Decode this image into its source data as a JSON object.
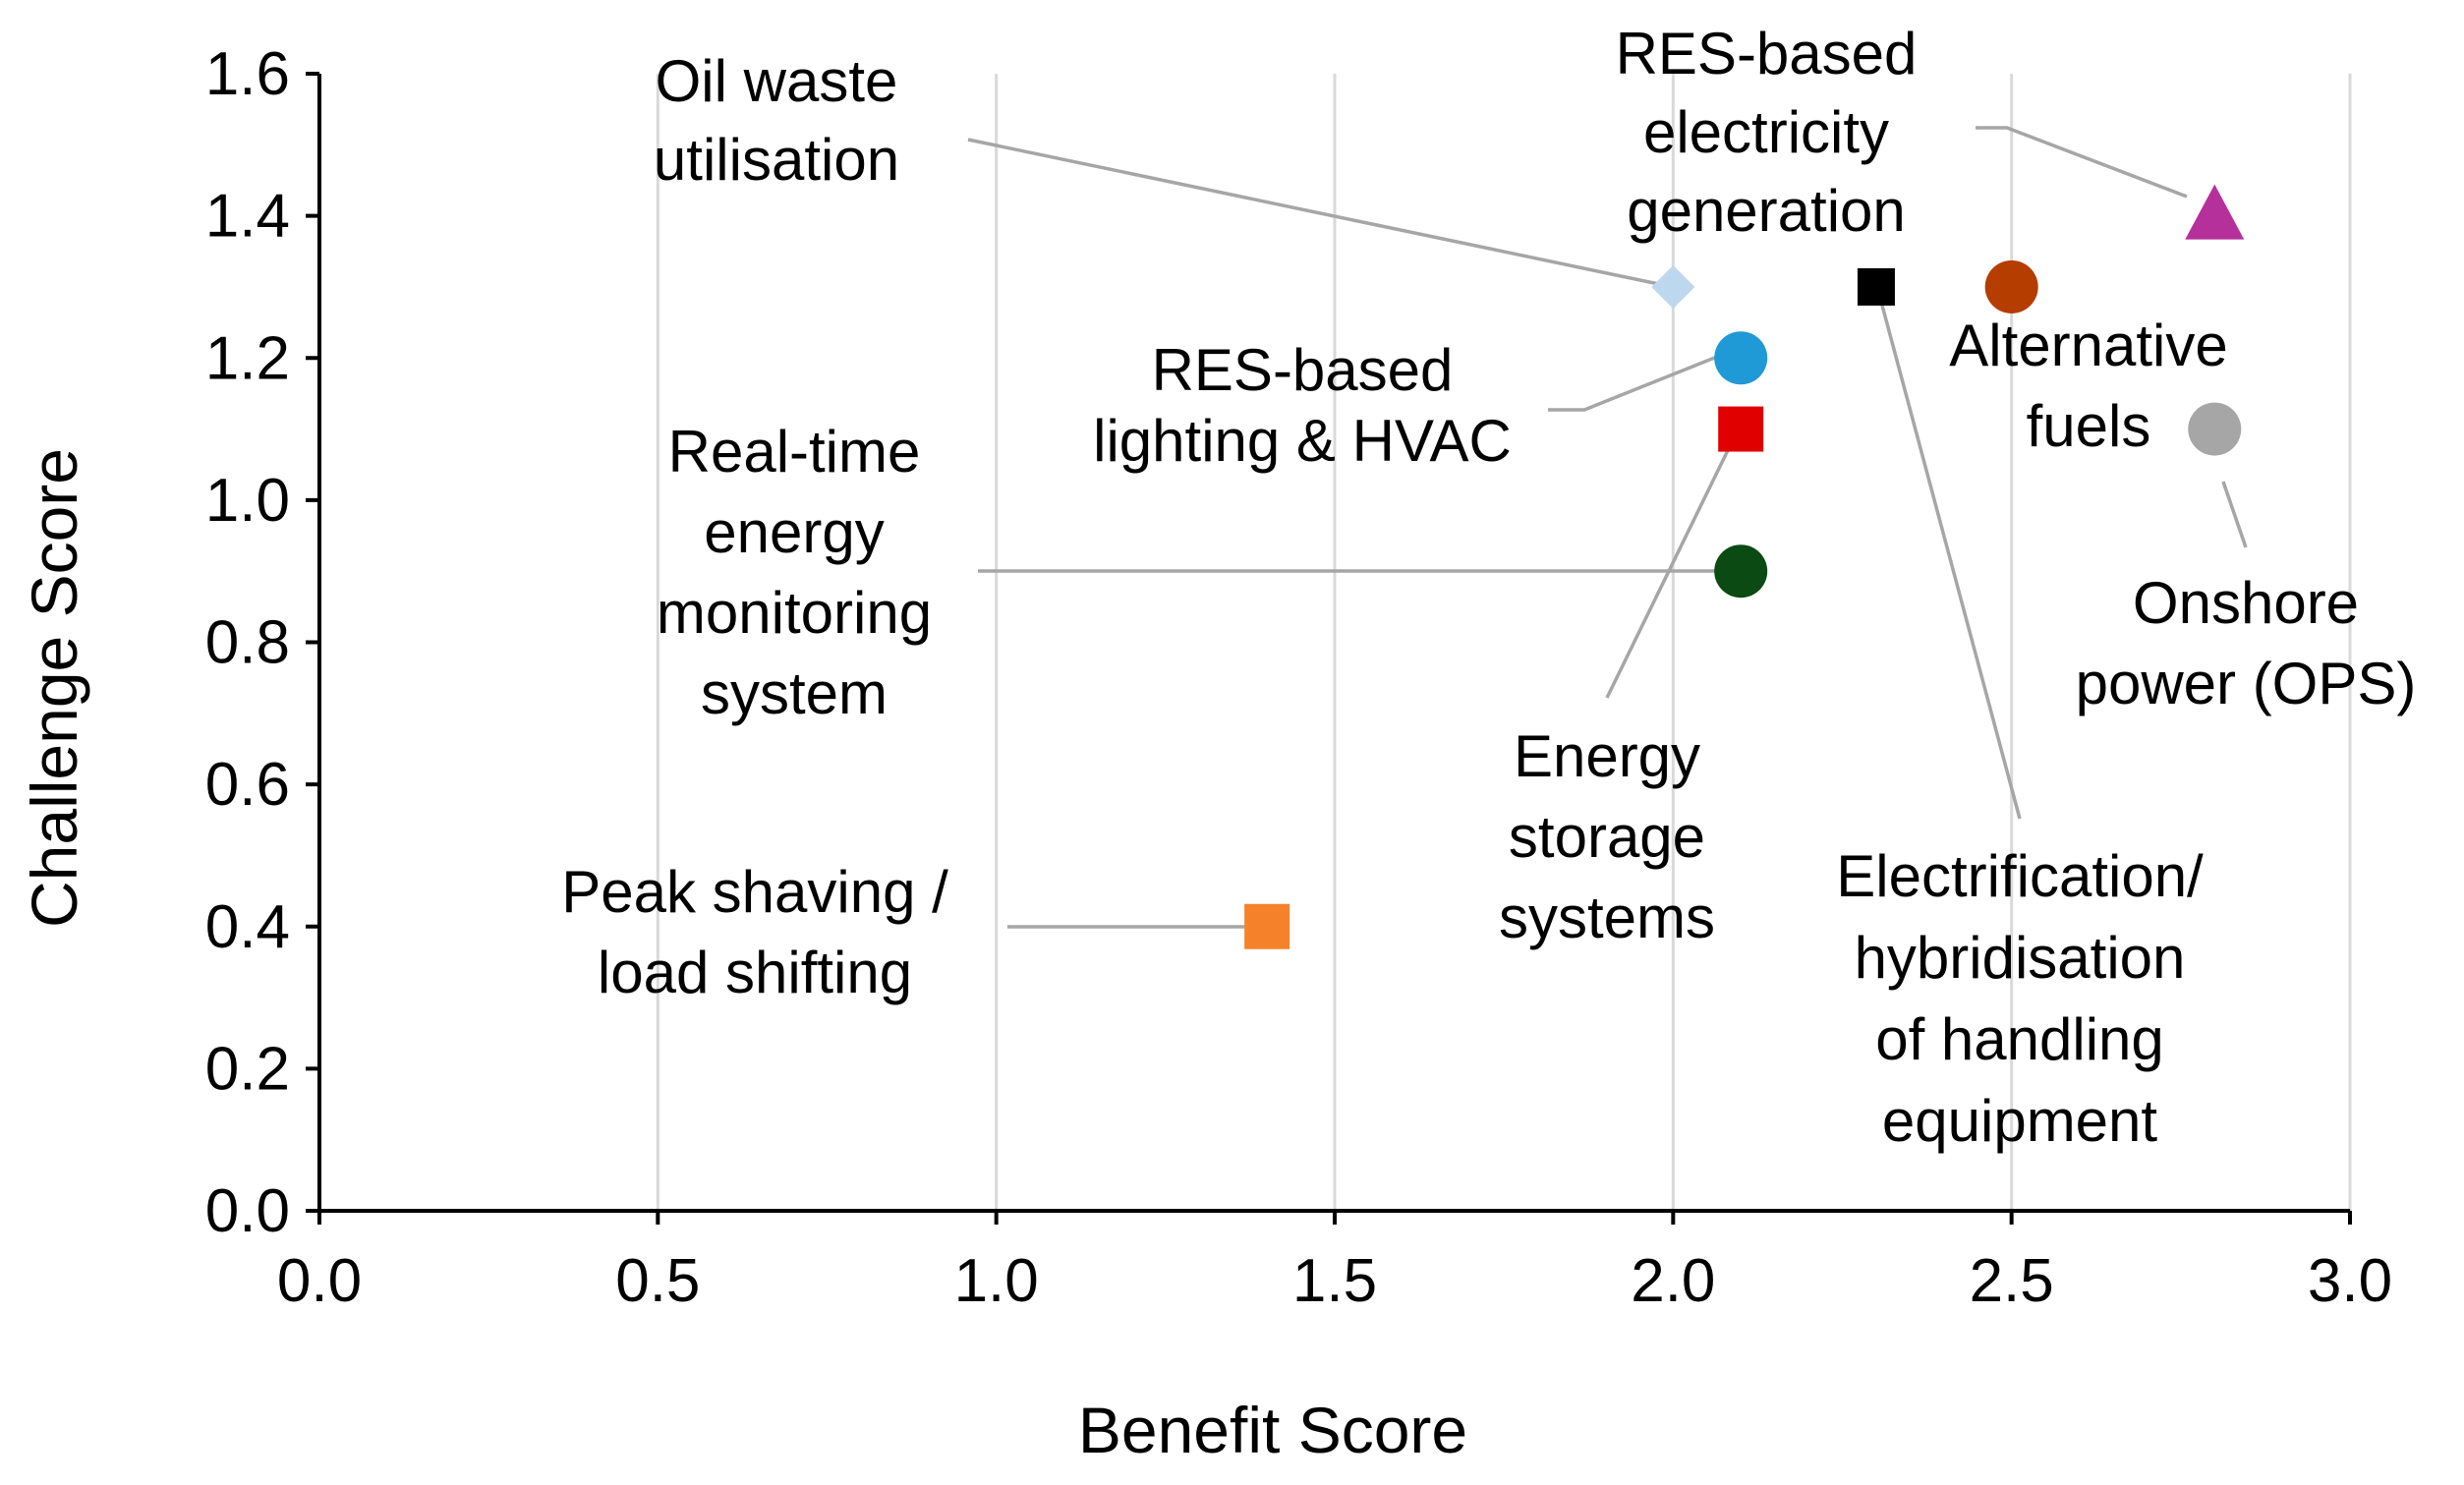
{
  "chart_data": {
    "type": "scatter",
    "title": "",
    "xlabel": "Benefit Score",
    "ylabel": "Challenge Score",
    "xlim": [
      0.0,
      3.0
    ],
    "ylim": [
      0.0,
      1.6
    ],
    "x_ticks": [
      "0.0",
      "0.5",
      "1.0",
      "1.5",
      "2.0",
      "2.5",
      "3.0"
    ],
    "y_ticks": [
      "0.0",
      "0.2",
      "0.4",
      "0.6",
      "0.8",
      "1.0",
      "1.2",
      "1.4",
      "1.6"
    ],
    "grid": "vertical",
    "legend": "none",
    "points": [
      {
        "id": "oil-waste",
        "label_lines": [
          "Oil waste",
          "utilisation"
        ],
        "x": 2.0,
        "y": 1.3,
        "marker": "diamond",
        "color": "#bdd7ee"
      },
      {
        "id": "res-electricity",
        "label_lines": [
          "RES-based",
          "electricity",
          "generation"
        ],
        "x": 2.8,
        "y": 1.4,
        "marker": "triangle",
        "color": "#b5309a"
      },
      {
        "id": "res-lighting",
        "label_lines": [
          "RES-based",
          "lighting & HVAC"
        ],
        "x": 2.1,
        "y": 1.2,
        "marker": "circle",
        "color": "#1f9ad6"
      },
      {
        "id": "energy-storage",
        "label_lines": [
          "Energy",
          "storage",
          "systems"
        ],
        "x": 2.1,
        "y": 1.1,
        "marker": "square",
        "color": "#e00000"
      },
      {
        "id": "realtime-monitoring",
        "label_lines": [
          "Real-time",
          "energy",
          "monitoring",
          "system"
        ],
        "x": 2.1,
        "y": 0.9,
        "marker": "circle",
        "color": "#0b4a12"
      },
      {
        "id": "electrification",
        "label_lines": [
          "Electrification/",
          "hybridisation",
          "of handling",
          "equipment"
        ],
        "x": 2.3,
        "y": 1.3,
        "marker": "square",
        "color": "#000000"
      },
      {
        "id": "alternative-fuels",
        "label_lines": [
          "Alternative",
          "fuels"
        ],
        "x": 2.5,
        "y": 1.3,
        "marker": "circle",
        "color": "#b53d00"
      },
      {
        "id": "onshore-power",
        "label_lines": [
          "Onshore",
          "power (OPS)"
        ],
        "x": 2.8,
        "y": 1.1,
        "marker": "circle",
        "color": "#a6a6a6"
      },
      {
        "id": "peak-shaving",
        "label_lines": [
          "Peak shaving /",
          "load shifting"
        ],
        "x": 1.4,
        "y": 0.4,
        "marker": "square",
        "color": "#f5822a"
      }
    ]
  }
}
